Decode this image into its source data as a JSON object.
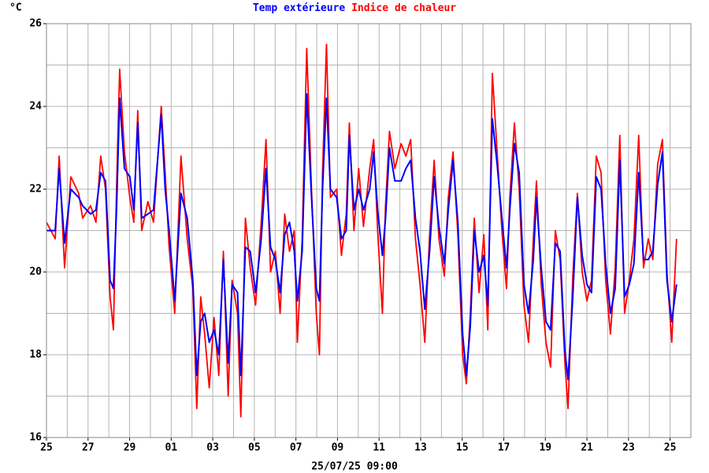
{
  "chart_data": {
    "type": "line",
    "unit_label": "°C",
    "xlabel": "25/07/25 09:00",
    "xlim": [
      0,
      31
    ],
    "ylim": [
      16,
      26
    ],
    "xticks": [
      {
        "value": 0,
        "label": "25"
      },
      {
        "value": 2,
        "label": "27"
      },
      {
        "value": 4,
        "label": "29"
      },
      {
        "value": 6,
        "label": "01"
      },
      {
        "value": 8,
        "label": "03"
      },
      {
        "value": 10,
        "label": "05"
      },
      {
        "value": 12,
        "label": "07"
      },
      {
        "value": 14,
        "label": "09"
      },
      {
        "value": 16,
        "label": "11"
      },
      {
        "value": 18,
        "label": "13"
      },
      {
        "value": 20,
        "label": "15"
      },
      {
        "value": 22,
        "label": "17"
      },
      {
        "value": 24,
        "label": "19"
      },
      {
        "value": 26,
        "label": "21"
      },
      {
        "value": 28,
        "label": "23"
      },
      {
        "value": 30,
        "label": "25"
      }
    ],
    "xminor": [
      1,
      3,
      5,
      7,
      9,
      11,
      13,
      15,
      17,
      19,
      21,
      23,
      25,
      27,
      29
    ],
    "yticks": [
      16,
      18,
      20,
      22,
      24,
      26
    ],
    "yminor": [
      17,
      19,
      21,
      23,
      25
    ],
    "grid": true,
    "x": [
      0,
      0.42,
      0.61,
      0.87,
      1.17,
      1.55,
      1.74,
      2.12,
      2.38,
      2.61,
      2.84,
      3.06,
      3.22,
      3.37,
      3.52,
      3.75,
      4.01,
      4.2,
      4.39,
      4.58,
      4.88,
      5.15,
      5.52,
      5.71,
      5.9,
      6.17,
      6.47,
      6.77,
      7.04,
      7.23,
      7.42,
      7.61,
      7.83,
      8.06,
      8.29,
      8.51,
      8.74,
      8.93,
      9.19,
      9.35,
      9.57,
      9.8,
      10.06,
      10.33,
      10.56,
      10.78,
      11.01,
      11.24,
      11.46,
      11.69,
      11.92,
      12.07,
      12.3,
      12.52,
      12.75,
      12.98,
      13.13,
      13.28,
      13.47,
      13.66,
      13.96,
      14.19,
      14.42,
      14.57,
      14.79,
      15.02,
      15.25,
      15.55,
      15.74,
      15.93,
      16.16,
      16.31,
      16.5,
      16.76,
      17.06,
      17.29,
      17.52,
      17.75,
      17.97,
      18.2,
      18.43,
      18.65,
      18.88,
      19.14,
      19.33,
      19.56,
      19.79,
      20.02,
      20.2,
      20.39,
      20.58,
      20.81,
      21.04,
      21.23,
      21.45,
      21.68,
      21.91,
      22.13,
      22.29,
      22.51,
      22.74,
      22.97,
      23.19,
      23.42,
      23.57,
      23.8,
      24.03,
      24.25,
      24.48,
      24.71,
      24.94,
      25.09,
      25.32,
      25.54,
      25.77,
      26,
      26.22,
      26.45,
      26.68,
      26.9,
      27.13,
      27.36,
      27.58,
      27.81,
      28.04,
      28.26,
      28.49,
      28.72,
      28.95,
      29.17,
      29.4,
      29.63,
      29.85,
      30.08,
      30.31
    ],
    "series": [
      {
        "name": "Temp extérieure",
        "color": "#0000ff",
        "values": [
          21.0,
          21.0,
          22.5,
          20.7,
          22.0,
          21.8,
          21.6,
          21.4,
          21.5,
          22.4,
          22.2,
          19.8,
          19.6,
          21.5,
          24.2,
          22.5,
          22.3,
          21.5,
          23.6,
          21.3,
          21.4,
          21.5,
          23.8,
          22.0,
          21.0,
          19.3,
          21.9,
          21.3,
          19.8,
          17.5,
          18.8,
          19.0,
          18.3,
          18.6,
          18.0,
          20.3,
          17.8,
          19.7,
          19.5,
          17.5,
          20.6,
          20.5,
          19.5,
          20.8,
          22.5,
          20.6,
          20.3,
          19.5,
          20.9,
          21.2,
          20.5,
          19.3,
          20.5,
          24.3,
          21.8,
          19.6,
          19.3,
          22.0,
          24.2,
          22.0,
          21.8,
          20.8,
          21.0,
          23.3,
          21.5,
          22.0,
          21.5,
          22.0,
          22.9,
          21.5,
          20.4,
          21.3,
          23.0,
          22.2,
          22.2,
          22.5,
          22.7,
          21.3,
          20.5,
          19.1,
          20.5,
          22.3,
          21.1,
          20.2,
          21.5,
          22.7,
          21.2,
          18.5,
          17.5,
          18.7,
          21.0,
          20.0,
          20.4,
          19.2,
          23.7,
          22.6,
          21.3,
          20.1,
          21.5,
          23.1,
          22.4,
          19.7,
          19.0,
          20.3,
          21.8,
          20.1,
          18.8,
          18.6,
          20.7,
          20.5,
          18.1,
          17.4,
          19.4,
          21.8,
          20.4,
          19.7,
          19.5,
          22.3,
          22.0,
          20.2,
          19.0,
          19.6,
          22.7,
          19.4,
          19.7,
          20.2,
          22.4,
          20.3,
          20.3,
          20.5,
          22.1,
          22.9,
          19.8,
          18.8,
          19.7
        ]
      },
      {
        "name": "Indice de chaleur",
        "color": "#ff0000",
        "values": [
          21.2,
          20.8,
          22.8,
          20.1,
          22.3,
          21.9,
          21.3,
          21.6,
          21.2,
          22.8,
          22.0,
          19.4,
          18.6,
          22.0,
          24.9,
          22.9,
          21.8,
          21.2,
          23.9,
          21.0,
          21.7,
          21.2,
          24.0,
          22.4,
          20.6,
          19.0,
          22.8,
          20.8,
          19.6,
          16.7,
          19.4,
          18.5,
          17.2,
          18.9,
          17.5,
          20.5,
          17.0,
          19.8,
          19.0,
          16.5,
          21.3,
          20.1,
          19.2,
          21.2,
          23.2,
          20.0,
          20.5,
          19.0,
          21.4,
          20.5,
          21.0,
          18.3,
          20.8,
          25.4,
          22.0,
          19.0,
          18.0,
          22.4,
          25.5,
          21.8,
          22.0,
          20.4,
          21.4,
          23.6,
          21.0,
          22.5,
          21.1,
          22.5,
          23.2,
          21.0,
          19.0,
          21.6,
          23.4,
          22.5,
          23.1,
          22.8,
          23.2,
          20.8,
          19.7,
          18.3,
          20.9,
          22.7,
          20.8,
          19.9,
          21.8,
          22.9,
          20.9,
          18.0,
          17.3,
          19.0,
          21.3,
          19.5,
          20.9,
          18.6,
          24.8,
          22.9,
          21.0,
          19.6,
          21.8,
          23.6,
          22.0,
          19.2,
          18.3,
          20.8,
          22.2,
          19.7,
          18.3,
          17.7,
          21.0,
          20.3,
          17.8,
          16.7,
          19.9,
          21.9,
          20.0,
          19.3,
          19.8,
          22.8,
          22.4,
          19.8,
          18.5,
          20.1,
          23.3,
          19.0,
          19.8,
          20.8,
          23.3,
          20.1,
          20.8,
          20.3,
          22.6,
          23.2,
          20.0,
          18.3,
          20.8
        ]
      }
    ]
  }
}
